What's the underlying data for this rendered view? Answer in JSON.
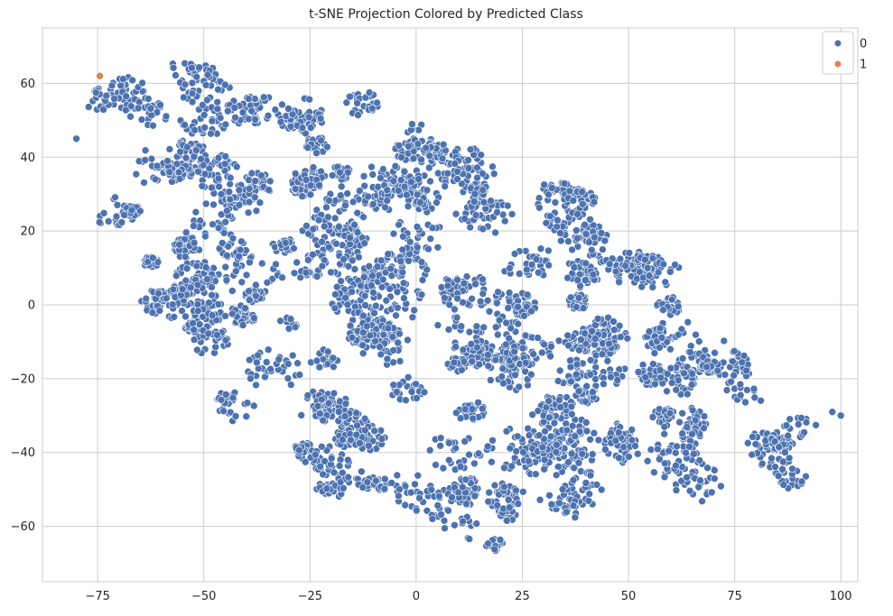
{
  "chart_data": {
    "type": "scatter",
    "title": "t-SNE Projection Colored by Predicted Class",
    "xlabel": "",
    "ylabel": "",
    "xlim": [
      -88,
      104
    ],
    "ylim": [
      -75,
      75
    ],
    "x_ticks": [
      -75,
      -50,
      -25,
      0,
      25,
      50,
      75,
      100
    ],
    "y_ticks": [
      -60,
      -40,
      -20,
      0,
      20,
      40,
      60
    ],
    "x_tick_labels": [
      "−75",
      "−50",
      "−25",
      "0",
      "25",
      "50",
      "75",
      "100"
    ],
    "y_tick_labels": [
      "−60",
      "−40",
      "−20",
      "0",
      "20",
      "40",
      "60"
    ],
    "grid": true,
    "legend_position": "top-right",
    "series": [
      {
        "name": "0",
        "color": "#4c72b0",
        "point_count_estimate": 4500,
        "outline_points": [
          [
            -80,
            45
          ],
          [
            -77,
            54
          ],
          [
            -75,
            60
          ],
          [
            -72,
            63
          ],
          [
            -68,
            65
          ],
          [
            -62,
            68
          ],
          [
            -55,
            66
          ],
          [
            -50,
            66
          ],
          [
            -45,
            64
          ],
          [
            -38,
            64
          ],
          [
            -30,
            62
          ],
          [
            -20,
            60
          ],
          [
            -12,
            58
          ],
          [
            -5,
            56
          ],
          [
            0,
            50
          ],
          [
            5,
            46
          ],
          [
            10,
            44
          ],
          [
            15,
            42
          ],
          [
            20,
            40
          ],
          [
            25,
            36
          ],
          [
            30,
            34
          ],
          [
            35,
            33
          ],
          [
            40,
            31
          ],
          [
            45,
            28
          ],
          [
            50,
            24
          ],
          [
            52,
            22
          ],
          [
            55,
            17
          ],
          [
            60,
            12
          ],
          [
            65,
            8
          ],
          [
            70,
            7
          ],
          [
            72,
            5
          ],
          [
            73,
            -5
          ],
          [
            75,
            -10
          ],
          [
            78,
            -15
          ],
          [
            80,
            -22
          ],
          [
            82,
            -28
          ],
          [
            85,
            -32
          ],
          [
            90,
            -30
          ],
          [
            95,
            -28
          ],
          [
            100,
            -30
          ],
          [
            98,
            -34
          ],
          [
            92,
            -40
          ],
          [
            92,
            -47
          ],
          [
            90,
            -52
          ],
          [
            85,
            -50
          ],
          [
            80,
            -55
          ],
          [
            75,
            -55
          ],
          [
            70,
            -52
          ],
          [
            65,
            -55
          ],
          [
            60,
            -57
          ],
          [
            55,
            -56
          ],
          [
            50,
            -60
          ],
          [
            45,
            -58
          ],
          [
            40,
            -62
          ],
          [
            35,
            -57
          ],
          [
            30,
            -55
          ],
          [
            25,
            -58
          ],
          [
            22,
            -65
          ],
          [
            20,
            -67
          ],
          [
            15,
            -66
          ],
          [
            10,
            -63
          ],
          [
            5,
            -60
          ],
          [
            0,
            -56
          ],
          [
            -5,
            -53
          ],
          [
            -10,
            -52
          ],
          [
            -15,
            -53
          ],
          [
            -20,
            -52
          ],
          [
            -25,
            -49
          ],
          [
            -30,
            -46
          ],
          [
            -35,
            -42
          ],
          [
            -40,
            -38
          ],
          [
            -45,
            -34
          ],
          [
            -48,
            -25
          ],
          [
            -45,
            -20
          ],
          [
            -50,
            -18
          ],
          [
            -55,
            -15
          ],
          [
            -60,
            -12
          ],
          [
            -65,
            -5
          ],
          [
            -68,
            0
          ],
          [
            -70,
            5
          ],
          [
            -72,
            12
          ],
          [
            -75,
            20
          ],
          [
            -75,
            30
          ],
          [
            -76,
            38
          ],
          [
            -74,
            45
          ],
          [
            -73,
            52
          ]
        ]
      },
      {
        "name": "1",
        "color": "#dd8452",
        "points": [
          [
            -74.5,
            62
          ]
        ]
      }
    ]
  }
}
